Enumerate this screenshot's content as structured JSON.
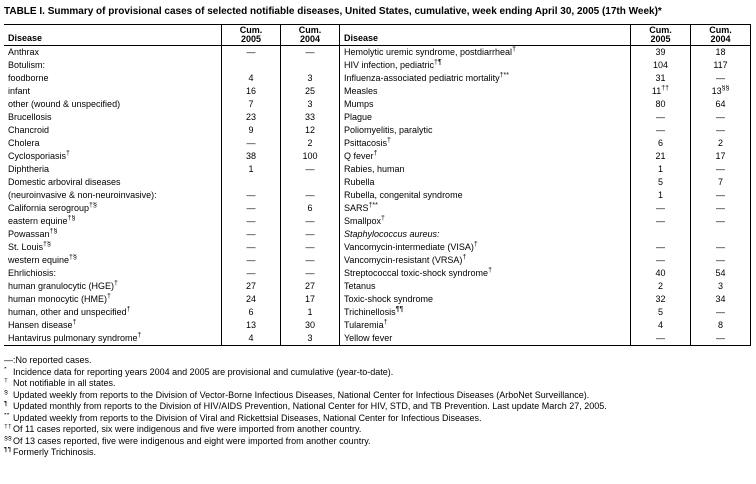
{
  "title": "TABLE I. Summary of provisional cases of selected notifiable diseases, United States, cumulative, week ending April 30, 2005 (17th Week)*",
  "colors": {
    "text": "#000000",
    "background": "#ffffff",
    "border": "#000000"
  },
  "table": {
    "headers": {
      "disease": "Disease",
      "cum": "Cum.",
      "year_2005": "2005",
      "year_2004": "2004"
    },
    "left_rows": [
      {
        "label": "Anthrax",
        "indent": 0,
        "v2005": "—",
        "v2004": "—"
      },
      {
        "label": "Botulism:",
        "indent": 0,
        "v2005": "",
        "v2004": ""
      },
      {
        "label": "foodborne",
        "indent": 2,
        "v2005": "4",
        "v2004": "3"
      },
      {
        "label": "infant",
        "indent": 2,
        "v2005": "16",
        "v2004": "25"
      },
      {
        "label": "other (wound & unspecified)",
        "indent": 2,
        "v2005": "7",
        "v2004": "3"
      },
      {
        "label": "Brucellosis",
        "indent": 0,
        "v2005": "23",
        "v2004": "33"
      },
      {
        "label": "Chancroid",
        "indent": 0,
        "v2005": "9",
        "v2004": "12"
      },
      {
        "label": "Cholera",
        "indent": 0,
        "v2005": "—",
        "v2004": "2"
      },
      {
        "label": "Cyclosporiasis†",
        "indent": 0,
        "v2005": "38",
        "v2004": "100"
      },
      {
        "label": "Diphtheria",
        "indent": 0,
        "v2005": "1",
        "v2004": "—"
      },
      {
        "label": "Domestic arboviral diseases",
        "indent": 0,
        "v2005": "",
        "v2004": ""
      },
      {
        "label": "(neuroinvasive & non-neuroinvasive):",
        "indent": 1,
        "v2005": "—",
        "v2004": "—"
      },
      {
        "label": "California serogroup†§",
        "indent": 2,
        "v2005": "—",
        "v2004": "6"
      },
      {
        "label": "eastern equine†§",
        "indent": 2,
        "v2005": "—",
        "v2004": "—"
      },
      {
        "label": "Powassan†§",
        "indent": 2,
        "v2005": "—",
        "v2004": "—"
      },
      {
        "label": "St. Louis†§",
        "indent": 2,
        "v2005": "—",
        "v2004": "—"
      },
      {
        "label": "western equine†§",
        "indent": 2,
        "v2005": "—",
        "v2004": "—"
      },
      {
        "label": "Ehrlichiosis:",
        "indent": 0,
        "v2005": "—",
        "v2004": "—"
      },
      {
        "label": "human granulocytic (HGE)†",
        "indent": 2,
        "v2005": "27",
        "v2004": "27"
      },
      {
        "label": "human monocytic (HME)†",
        "indent": 2,
        "v2005": "24",
        "v2004": "17"
      },
      {
        "label": "human, other and unspecified†",
        "indent": 2,
        "v2005": "6",
        "v2004": "1"
      },
      {
        "label": "Hansen disease†",
        "indent": 0,
        "v2005": "13",
        "v2004": "30"
      },
      {
        "label": "Hantavirus pulmonary syndrome†",
        "indent": 0,
        "v2005": "4",
        "v2004": "3"
      }
    ],
    "right_rows": [
      {
        "label": "Hemolytic uremic syndrome, postdiarrheal†",
        "indent": 0,
        "v2005": "39",
        "v2004": "18"
      },
      {
        "label": "HIV infection, pediatric†¶",
        "indent": 0,
        "v2005": "104",
        "v2004": "117"
      },
      {
        "label": "Influenza-associated pediatric mortality†**",
        "indent": 0,
        "v2005": "31",
        "v2004": "—"
      },
      {
        "label": "Measles",
        "indent": 0,
        "v2005": "11††",
        "v2004": "13§§"
      },
      {
        "label": "Mumps",
        "indent": 0,
        "v2005": "80",
        "v2004": "64"
      },
      {
        "label": "Plague",
        "indent": 0,
        "v2005": "—",
        "v2004": "—"
      },
      {
        "label": "Poliomyelitis, paralytic",
        "indent": 0,
        "v2005": "—",
        "v2004": "—"
      },
      {
        "label": "Psittacosis†",
        "indent": 0,
        "v2005": "6",
        "v2004": "2"
      },
      {
        "label": "Q fever†",
        "indent": 0,
        "v2005": "21",
        "v2004": "17"
      },
      {
        "label": "Rabies, human",
        "indent": 0,
        "v2005": "1",
        "v2004": "—"
      },
      {
        "label": "Rubella",
        "indent": 0,
        "v2005": "5",
        "v2004": "7"
      },
      {
        "label": "Rubella, congenital syndrome",
        "indent": 0,
        "v2005": "1",
        "v2004": "—"
      },
      {
        "label": "SARS†**",
        "indent": 0,
        "v2005": "—",
        "v2004": "—"
      },
      {
        "label": "Smallpox†",
        "indent": 0,
        "v2005": "—",
        "v2004": "—"
      },
      {
        "label": "Staphylococcus aureus:",
        "indent": 0,
        "italic": true,
        "v2005": "",
        "v2004": ""
      },
      {
        "label": "Vancomycin-intermediate (VISA)†",
        "indent": 3,
        "v2005": "—",
        "v2004": "—"
      },
      {
        "label": "Vancomycin-resistant (VRSA)†",
        "indent": 3,
        "v2005": "—",
        "v2004": "—"
      },
      {
        "label": "Streptococcal toxic-shock syndrome†",
        "indent": 0,
        "v2005": "40",
        "v2004": "54"
      },
      {
        "label": "Tetanus",
        "indent": 0,
        "v2005": "2",
        "v2004": "3"
      },
      {
        "label": "Toxic-shock syndrome",
        "indent": 0,
        "v2005": "32",
        "v2004": "34"
      },
      {
        "label": "Trichinellosis¶¶",
        "indent": 0,
        "v2005": "5",
        "v2004": "—"
      },
      {
        "label": "Tularemia†",
        "indent": 0,
        "v2005": "4",
        "v2004": "8"
      },
      {
        "label": "Yellow fever",
        "indent": 0,
        "v2005": "—",
        "v2004": "—"
      }
    ]
  },
  "footnotes": [
    {
      "marker": "—:",
      "sup": false,
      "text": "No reported cases."
    },
    {
      "marker": "*",
      "sup": true,
      "text": "Incidence data for reporting years 2004 and 2005 are provisional and cumulative (year-to-date)."
    },
    {
      "marker": "†",
      "sup": true,
      "text": "Not notifiable in all states."
    },
    {
      "marker": "§",
      "sup": true,
      "text": "Updated weekly from reports to the Division of Vector-Borne Infectious Diseases, National Center for Infectious Diseases (ArboNet Surveillance)."
    },
    {
      "marker": "¶",
      "sup": true,
      "text": "Updated monthly from reports to the Division of HIV/AIDS Prevention, National Center for HIV, STD, and TB Prevention. Last update March 27, 2005."
    },
    {
      "marker": "**",
      "sup": true,
      "text": "Updated weekly from reports to the Division of Viral and Rickettsial Diseases, National Center for Infectious Diseases."
    },
    {
      "marker": "††",
      "sup": true,
      "text": "Of 11 cases reported, six were indigenous and five were imported from another country."
    },
    {
      "marker": "§§",
      "sup": true,
      "text": "Of 13 cases reported, five were indigenous and eight were imported from another country."
    },
    {
      "marker": "¶¶",
      "sup": true,
      "text": "Formerly Trichinosis."
    }
  ]
}
